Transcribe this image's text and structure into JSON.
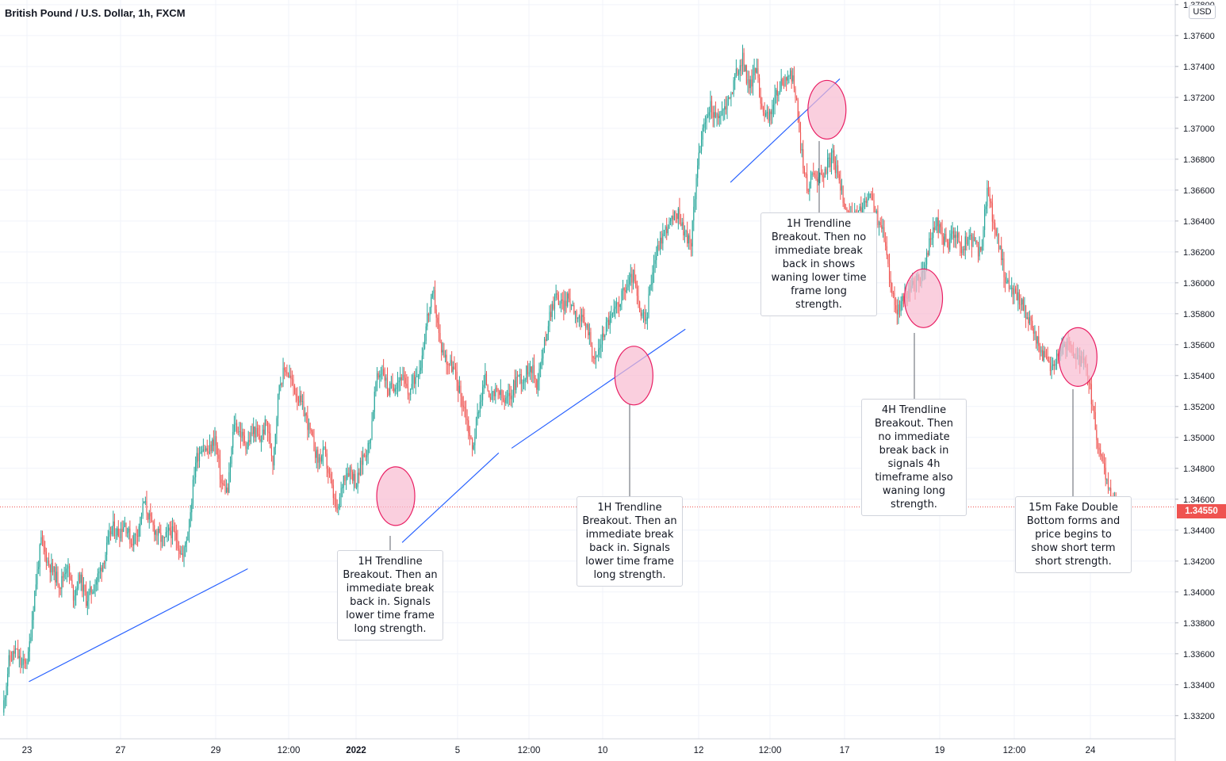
{
  "chart_data": {
    "type": "candlestick",
    "title": "British Pound / U.S. Dollar, 1h, FXCM",
    "currency": "USD",
    "last_price": "1.34550",
    "ylim": [
      1.3305,
      1.3783
    ],
    "y_ticks": [
      "1.33200",
      "1.33400",
      "1.33600",
      "1.33800",
      "1.34000",
      "1.34200",
      "1.34400",
      "1.34600",
      "1.34800",
      "1.35000",
      "1.35200",
      "1.35400",
      "1.35600",
      "1.35800",
      "1.36000",
      "1.36200",
      "1.36400",
      "1.36600",
      "1.36800",
      "1.37000",
      "1.37200",
      "1.37400",
      "1.37600",
      "1.37800"
    ],
    "x_ticks": [
      "23",
      "27",
      "29",
      "12:00",
      "2022",
      "5",
      "12:00",
      "10",
      "12",
      "12:00",
      "17",
      "19",
      "12:00",
      "24"
    ],
    "colors": {
      "up": "#26a69a",
      "down": "#ef5350",
      "trendline": "#2962ff",
      "highlight_fill": "#f8bbd0",
      "highlight_stroke": "#e91e63"
    },
    "approx_close_path": [
      [
        0,
        1.3322
      ],
      [
        1,
        1.3355
      ],
      [
        2,
        1.3362
      ],
      [
        3,
        1.3352
      ],
      [
        4,
        1.3358
      ],
      [
        5,
        1.34
      ],
      [
        6,
        1.3433
      ],
      [
        7,
        1.342
      ],
      [
        8,
        1.3412
      ],
      [
        9,
        1.3405
      ],
      [
        10,
        1.3418
      ],
      [
        11,
        1.3398
      ],
      [
        12,
        1.341
      ],
      [
        13,
        1.3395
      ],
      [
        14,
        1.3402
      ],
      [
        15,
        1.3412
      ],
      [
        16,
        1.3425
      ],
      [
        17,
        1.3442
      ],
      [
        18,
        1.3438
      ],
      [
        19,
        1.3445
      ],
      [
        20,
        1.3432
      ],
      [
        21,
        1.344
      ],
      [
        22,
        1.3458
      ],
      [
        23,
        1.3445
      ],
      [
        24,
        1.3438
      ],
      [
        25,
        1.3432
      ],
      [
        26,
        1.344
      ],
      [
        27,
        1.3435
      ],
      [
        28,
        1.3422
      ],
      [
        29,
        1.3445
      ],
      [
        30,
        1.3485
      ],
      [
        31,
        1.3495
      ],
      [
        32,
        1.349
      ],
      [
        33,
        1.35
      ],
      [
        34,
        1.347
      ],
      [
        35,
        1.3465
      ],
      [
        36,
        1.351
      ],
      [
        37,
        1.3502
      ],
      [
        38,
        1.3495
      ],
      [
        39,
        1.3505
      ],
      [
        40,
        1.3498
      ],
      [
        41,
        1.351
      ],
      [
        42,
        1.3485
      ],
      [
        43,
        1.3535
      ],
      [
        44,
        1.3545
      ],
      [
        45,
        1.3535
      ],
      [
        46,
        1.3525
      ],
      [
        47,
        1.3515
      ],
      [
        48,
        1.35
      ],
      [
        49,
        1.3485
      ],
      [
        50,
        1.349
      ],
      [
        51,
        1.347
      ],
      [
        52,
        1.345
      ],
      [
        53,
        1.3475
      ],
      [
        54,
        1.348
      ],
      [
        55,
        1.347
      ],
      [
        56,
        1.3488
      ],
      [
        57,
        1.3495
      ],
      [
        58,
        1.3535
      ],
      [
        59,
        1.3545
      ],
      [
        60,
        1.353
      ],
      [
        61,
        1.3535
      ],
      [
        62,
        1.354
      ],
      [
        63,
        1.3528
      ],
      [
        64,
        1.3538
      ],
      [
        65,
        1.3548
      ],
      [
        66,
        1.3578
      ],
      [
        67,
        1.3592
      ],
      [
        68,
        1.356
      ],
      [
        69,
        1.355
      ],
      [
        70,
        1.3545
      ],
      [
        71,
        1.353
      ],
      [
        72,
        1.3515
      ],
      [
        73,
        1.3492
      ],
      [
        74,
        1.352
      ],
      [
        75,
        1.3538
      ],
      [
        76,
        1.3525
      ],
      [
        77,
        1.353
      ],
      [
        78,
        1.3522
      ],
      [
        79,
        1.3528
      ],
      [
        80,
        1.354
      ],
      [
        81,
        1.3538
      ],
      [
        82,
        1.3548
      ],
      [
        83,
        1.3535
      ],
      [
        84,
        1.3555
      ],
      [
        85,
        1.358
      ],
      [
        86,
        1.3592
      ],
      [
        87,
        1.3585
      ],
      [
        88,
        1.359
      ],
      [
        89,
        1.3582
      ],
      [
        90,
        1.3575
      ],
      [
        91,
        1.357
      ],
      [
        92,
        1.3548
      ],
      [
        93,
        1.3562
      ],
      [
        94,
        1.3575
      ],
      [
        95,
        1.358
      ],
      [
        96,
        1.359
      ],
      [
        97,
        1.3598
      ],
      [
        98,
        1.3605
      ],
      [
        99,
        1.358
      ],
      [
        100,
        1.3575
      ],
      [
        101,
        1.361
      ],
      [
        102,
        1.3625
      ],
      [
        103,
        1.3635
      ],
      [
        104,
        1.364
      ],
      [
        105,
        1.3645
      ],
      [
        106,
        1.3632
      ],
      [
        107,
        1.3625
      ],
      [
        108,
        1.368
      ],
      [
        109,
        1.37
      ],
      [
        110,
        1.3715
      ],
      [
        111,
        1.3705
      ],
      [
        112,
        1.3712
      ],
      [
        113,
        1.372
      ],
      [
        114,
        1.3735
      ],
      [
        115,
        1.3745
      ],
      [
        116,
        1.3725
      ],
      [
        117,
        1.374
      ],
      [
        118,
        1.3715
      ],
      [
        119,
        1.3705
      ],
      [
        120,
        1.372
      ],
      [
        121,
        1.3728
      ],
      [
        122,
        1.3735
      ],
      [
        123,
        1.373
      ],
      [
        124,
        1.369
      ],
      [
        125,
        1.366
      ],
      [
        126,
        1.3672
      ],
      [
        127,
        1.3668
      ],
      [
        128,
        1.3675
      ],
      [
        129,
        1.3682
      ],
      [
        130,
        1.3665
      ],
      [
        131,
        1.365
      ],
      [
        132,
        1.364
      ],
      [
        133,
        1.3645
      ],
      [
        134,
        1.3652
      ],
      [
        135,
        1.3655
      ],
      [
        136,
        1.364
      ],
      [
        137,
        1.363
      ],
      [
        138,
        1.36
      ],
      [
        139,
        1.358
      ],
      [
        140,
        1.359
      ],
      [
        141,
        1.3595
      ],
      [
        142,
        1.36
      ],
      [
        143,
        1.3605
      ],
      [
        144,
        1.3625
      ],
      [
        145,
        1.364
      ],
      [
        146,
        1.363
      ],
      [
        147,
        1.3625
      ],
      [
        148,
        1.3635
      ],
      [
        149,
        1.362
      ],
      [
        150,
        1.363
      ],
      [
        151,
        1.3625
      ],
      [
        152,
        1.3618
      ],
      [
        153,
        1.366
      ],
      [
        154,
        1.364
      ],
      [
        155,
        1.362
      ],
      [
        156,
        1.36
      ],
      [
        157,
        1.3595
      ],
      [
        158,
        1.359
      ],
      [
        159,
        1.358
      ],
      [
        160,
        1.357
      ],
      [
        161,
        1.356
      ],
      [
        162,
        1.355
      ],
      [
        163,
        1.3545
      ],
      [
        164,
        1.3555
      ],
      [
        165,
        1.356
      ],
      [
        166,
        1.3558
      ],
      [
        167,
        1.355
      ],
      [
        168,
        1.3548
      ],
      [
        169,
        1.353
      ],
      [
        170,
        1.35
      ],
      [
        171,
        1.348
      ],
      [
        172,
        1.3465
      ],
      [
        173,
        1.3455
      ]
    ],
    "trendlines": [
      {
        "from": [
          4,
          1.3342
        ],
        "to": [
          38,
          1.3415
        ]
      },
      {
        "from": [
          62,
          1.3432
        ],
        "to": [
          77,
          1.349
        ]
      },
      {
        "from": [
          79,
          1.3493
        ],
        "to": [
          106,
          1.357
        ]
      },
      {
        "from": [
          113,
          1.3665
        ],
        "to": [
          130,
          1.3732
        ]
      }
    ],
    "highlights": [
      {
        "center": [
          61,
          1.3462
        ]
      },
      {
        "center": [
          98,
          1.354
        ]
      },
      {
        "center": [
          128,
          1.3712
        ]
      },
      {
        "center": [
          143,
          1.359
        ]
      },
      {
        "center": [
          167,
          1.3552
        ]
      }
    ],
    "annotations": [
      {
        "text": "1H Trendline Breakout. Then an immediate break back in. Signals lower time frame long strength."
      },
      {
        "text": "1H Trendline Breakout. Then an immediate break back in. Signals lower time frame long strength."
      },
      {
        "text": "1H Trendline Breakout. Then no immediate break back in shows waning lower time frame long strength."
      },
      {
        "text": "4H Trendline Breakout. Then no immediate break back in signals 4h timeframe also waning long strength."
      },
      {
        "text": "15m Fake Double Bottom forms and price begins to show short term short strength."
      }
    ]
  }
}
